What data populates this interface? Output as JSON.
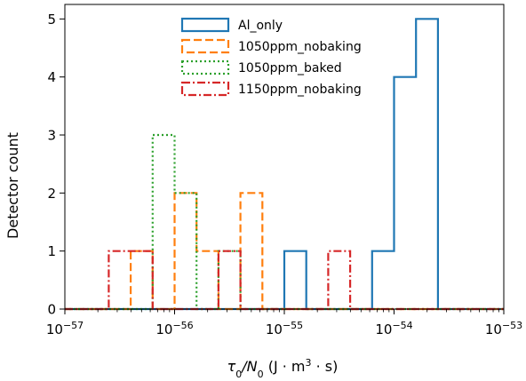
{
  "chart_data": {
    "type": "histogram",
    "xlabel_parts": [
      "τ",
      "0",
      "/N",
      "0",
      " (J · m",
      "3",
      " · s)"
    ],
    "ylabel": "Detector count",
    "xscale": "log",
    "xlim": [
      1e-57,
      1e-53
    ],
    "ylim": [
      0,
      5.25
    ],
    "x_ticks": [
      {
        "exp": "-57",
        "base": "10",
        "value": 1e-57
      },
      {
        "exp": "-56",
        "base": "10",
        "value": 1e-56
      },
      {
        "exp": "-55",
        "base": "10",
        "value": 1e-55
      },
      {
        "exp": "-54",
        "base": "10",
        "value": 1e-54
      },
      {
        "exp": "-53",
        "base": "10",
        "value": 1e-53
      }
    ],
    "y_ticks": [
      {
        "label": "0",
        "value": 0
      },
      {
        "label": "1",
        "value": 1
      },
      {
        "label": "2",
        "value": 2
      },
      {
        "label": "3",
        "value": 3
      },
      {
        "label": "4",
        "value": 4
      },
      {
        "label": "5",
        "value": 5
      }
    ],
    "bin_edges_log10": [
      -57.0,
      -56.8,
      -56.6,
      -56.4,
      -56.2,
      -56.0,
      -55.8,
      -55.6,
      -55.4,
      -55.2,
      -55.0,
      -54.8,
      -54.6,
      -54.4,
      -54.2,
      -54.0,
      -53.8,
      -53.6,
      -53.4,
      -53.2,
      -53.0
    ],
    "legend": {
      "position": "upper center"
    },
    "series": [
      {
        "name": "Al_only",
        "color": "#1f77b4",
        "dash": "none",
        "counts": [
          0,
          0,
          0,
          0,
          0,
          0,
          0,
          0,
          0,
          0,
          1,
          0,
          0,
          0,
          1,
          4,
          5,
          0,
          0,
          0
        ]
      },
      {
        "name": "1050ppm_nobaking",
        "color": "#ff7f0e",
        "dash": "dashed",
        "counts": [
          0,
          0,
          0,
          1,
          0,
          2,
          1,
          0,
          2,
          0,
          0,
          0,
          0,
          0,
          0,
          0,
          0,
          0,
          0,
          0
        ]
      },
      {
        "name": "1050ppm_baked",
        "color": "#2ca02c",
        "dash": "dotted",
        "counts": [
          0,
          0,
          0,
          0,
          3,
          2,
          0,
          1,
          0,
          0,
          0,
          0,
          0,
          0,
          0,
          0,
          0,
          0,
          0,
          0
        ]
      },
      {
        "name": "1150ppm_nobaking",
        "color": "#d62728",
        "dash": "dashdot",
        "counts": [
          0,
          0,
          1,
          1,
          0,
          0,
          0,
          1,
          0,
          0,
          0,
          0,
          1,
          0,
          0,
          0,
          0,
          0,
          0,
          0
        ]
      }
    ]
  }
}
